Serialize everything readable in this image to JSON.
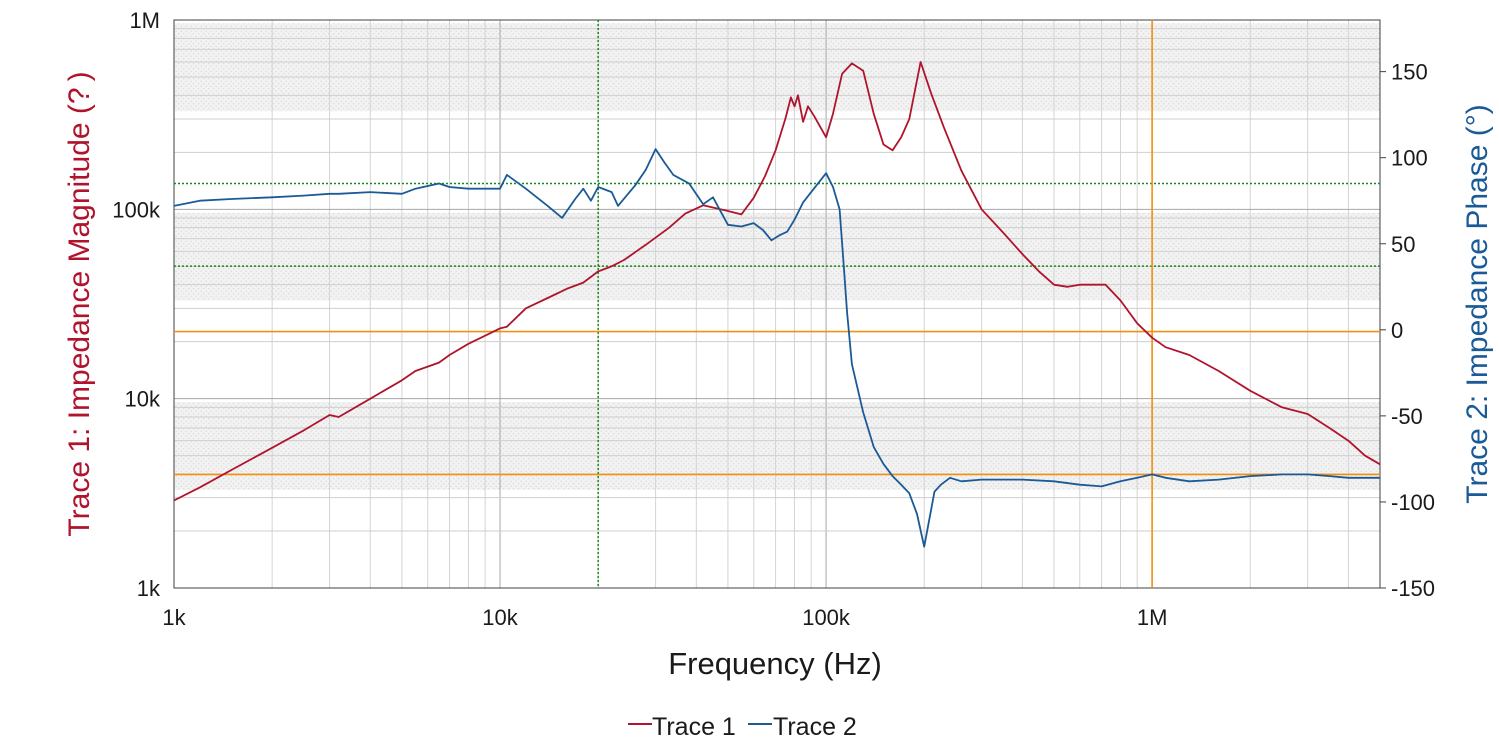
{
  "chart_data": {
    "type": "line",
    "xlabel": "Frequency (Hz)",
    "x_scale": "log",
    "xlim": [
      1000,
      5000000
    ],
    "x_ticks": [
      {
        "value": 1000,
        "label": "1k"
      },
      {
        "value": 10000,
        "label": "10k"
      },
      {
        "value": 100000,
        "label": "100k"
      },
      {
        "value": 1000000,
        "label": "1M"
      }
    ],
    "y_left": {
      "label": "Trace 1: Impedance Magnitude (? )",
      "scale": "log",
      "lim": [
        1000,
        1000000
      ],
      "ticks": [
        {
          "value": 1000,
          "label": "1k"
        },
        {
          "value": 10000,
          "label": "10k"
        },
        {
          "value": 100000,
          "label": "100k"
        },
        {
          "value": 1000000,
          "label": "1M"
        }
      ],
      "color": "#b0142c"
    },
    "y_right": {
      "label": "Trace 2: Impedance Phase (°)",
      "scale": "linear",
      "lim": [
        -150,
        180
      ],
      "ticks": [
        {
          "value": 150,
          "label": "150"
        },
        {
          "value": 100,
          "label": "100"
        },
        {
          "value": 50,
          "label": "50"
        },
        {
          "value": 0,
          "label": "0"
        },
        {
          "value": -50,
          "label": "-50"
        },
        {
          "value": -100,
          "label": "-100"
        },
        {
          "value": -150,
          "label": "-150"
        }
      ],
      "color": "#1a5a96"
    },
    "grid": true,
    "legend_position": "bottom-center",
    "legend": [
      {
        "name": "Trace 1",
        "color": "#b0142c"
      },
      {
        "name": "Trace 2",
        "color": "#1a5a96"
      }
    ],
    "series": [
      {
        "name": "Trace 1",
        "axis": "left",
        "color": "#b0142c",
        "x": [
          1000,
          1200,
          1500,
          2000,
          2500,
          3000,
          3200,
          4000,
          5000,
          5500,
          6500,
          7000,
          8000,
          9000,
          10000,
          10500,
          12000,
          14000,
          16000,
          18000,
          20000,
          22000,
          24000,
          28000,
          33000,
          37000,
          42000,
          50000,
          55000,
          60000,
          65000,
          70000,
          75000,
          78000,
          80000,
          82000,
          85000,
          88000,
          92000,
          100000,
          105000,
          112000,
          120000,
          130000,
          140000,
          150000,
          160000,
          170000,
          180000,
          195000,
          210000,
          230000,
          260000,
          300000,
          350000,
          400000,
          450000,
          500000,
          550000,
          600000,
          700000,
          720000,
          800000,
          900000,
          1000000,
          1100000,
          1300000,
          1600000,
          2000000,
          2500000,
          3000000,
          3500000,
          4000000,
          4500000,
          5000000
        ],
        "values": [
          2900,
          3400,
          4200,
          5500,
          6800,
          8200,
          8000,
          10000,
          12500,
          14000,
          15500,
          17000,
          19500,
          21500,
          23500,
          24000,
          30000,
          34000,
          38000,
          41000,
          47000,
          50000,
          54000,
          65000,
          80000,
          95000,
          105000,
          98000,
          94000,
          115000,
          150000,
          205000,
          300000,
          390000,
          350000,
          400000,
          290000,
          350000,
          310000,
          240000,
          320000,
          520000,
          590000,
          540000,
          320000,
          220000,
          205000,
          240000,
          300000,
          600000,
          410000,
          270000,
          160000,
          100000,
          75000,
          58000,
          47000,
          40000,
          39000,
          40000,
          40000,
          40000,
          33000,
          25000,
          21000,
          18700,
          17000,
          14000,
          11000,
          9000,
          8300,
          7000,
          6000,
          5000,
          4500
        ]
      },
      {
        "name": "Trace 2",
        "axis": "right",
        "color": "#1a5a96",
        "x": [
          1000,
          1200,
          1500,
          2000,
          2500,
          3000,
          3200,
          4000,
          5000,
          5500,
          6500,
          7000,
          8000,
          9000,
          10000,
          10500,
          12000,
          14000,
          15500,
          17000,
          18000,
          19000,
          20000,
          22000,
          23000,
          26000,
          28000,
          30000,
          32000,
          34000,
          38000,
          42000,
          45000,
          50000,
          55000,
          60000,
          64000,
          68000,
          72000,
          76000,
          80000,
          85000,
          90000,
          100000,
          105000,
          110000,
          113000,
          116000,
          120000,
          130000,
          140000,
          150000,
          160000,
          170000,
          180000,
          190000,
          200000,
          215000,
          225000,
          240000,
          260000,
          300000,
          400000,
          500000,
          600000,
          700000,
          800000,
          900000,
          1000000,
          1100000,
          1300000,
          1600000,
          2000000,
          2500000,
          3000000,
          3500000,
          4000000,
          4500000,
          5000000
        ],
        "values": [
          72,
          75,
          76,
          77,
          78,
          79,
          79,
          80,
          79,
          82,
          85,
          83,
          82,
          82,
          82,
          90,
          82,
          72,
          65,
          76,
          82,
          75,
          83,
          80,
          72,
          84,
          93,
          105,
          97,
          90,
          85,
          73,
          77,
          61,
          60,
          62,
          58,
          52,
          55,
          57,
          64,
          74,
          80,
          91,
          83,
          70,
          40,
          10,
          -20,
          -48,
          -68,
          -78,
          -85,
          -90,
          -95,
          -107,
          -126,
          -94,
          -90,
          -86,
          -88,
          -87,
          -87,
          -88,
          -90,
          -91,
          -88,
          -86,
          -84,
          -86,
          -88,
          -87,
          -85,
          -84,
          -84,
          -85,
          -86,
          -86,
          -86
        ]
      }
    ],
    "reference_lines": {
      "green_dotted": {
        "x": [
          20000
        ],
        "y_right": [
          85,
          37
        ],
        "color": "#128c1a"
      },
      "orange_solid": {
        "x": [
          1000000
        ],
        "y_right": [
          -1,
          -84
        ],
        "color": "#f2900f"
      }
    }
  }
}
